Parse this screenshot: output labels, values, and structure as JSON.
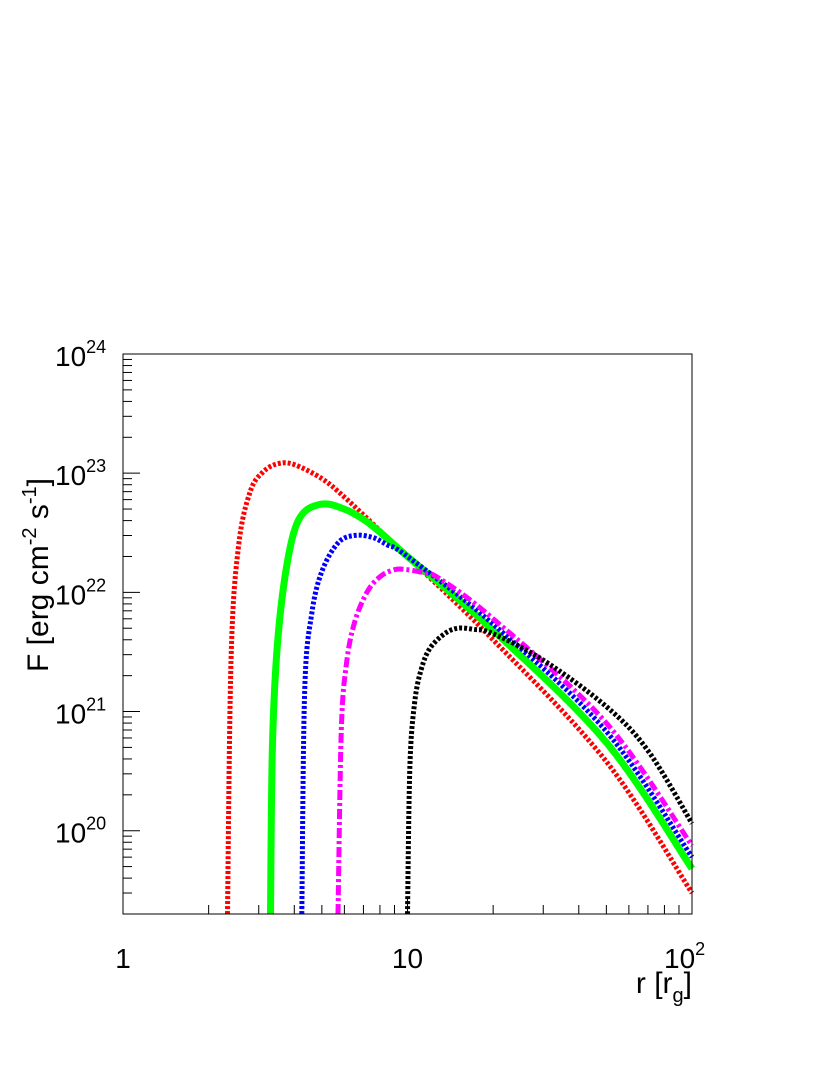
{
  "chart_data": {
    "type": "line",
    "title": "",
    "xlabel": {
      "text": "r [r",
      "sub": "g",
      "close": "]"
    },
    "ylabel": {
      "parts": [
        {
          "t": "F [erg cm",
          "s": ""
        },
        {
          "t": "",
          "s": "-2"
        },
        {
          "t": " s",
          "s": ""
        },
        {
          "t": "",
          "s": "-1"
        },
        {
          "t": "]",
          "s": ""
        }
      ]
    },
    "x_scale": "log",
    "y_scale": "log",
    "xlim": [
      1,
      100
    ],
    "ylim": [
      2e+19,
      1e+24
    ],
    "x_ticks": [
      {
        "value": 1,
        "base": "1",
        "exp": ""
      },
      {
        "value": 10,
        "base": "10",
        "exp": ""
      },
      {
        "value": 100,
        "base": "10",
        "exp": "2"
      }
    ],
    "y_ticks": [
      {
        "value": 1e+20,
        "base": "10",
        "exp": "20"
      },
      {
        "value": 1e+21,
        "base": "10",
        "exp": "21"
      },
      {
        "value": 1e+22,
        "base": "10",
        "exp": "22"
      },
      {
        "value": 1e+23,
        "base": "10",
        "exp": "23"
      },
      {
        "value": 1e+24,
        "base": "10",
        "exp": "24"
      }
    ],
    "grid": false,
    "legend": "none",
    "series": [
      {
        "color": "#ff0000",
        "style": "dotted",
        "x": [
          2.33,
          2.4,
          2.55,
          2.8,
          3.1,
          3.5,
          4.0,
          5.0,
          6.0,
          8.0,
          10.0,
          20.0,
          50.0,
          100.0
        ],
        "y": [
          2e+19,
          3e+21,
          2.5e+22,
          7e+22,
          1.02e+23,
          1.2e+23,
          1.18e+23,
          9e+22,
          6.3e+22,
          3.3e+22,
          2e+22,
          4e+21,
          3.8e+20,
          3e+19
        ]
      },
      {
        "color": "#00ff00",
        "style": "solid",
        "x": [
          3.3,
          3.35,
          3.5,
          3.8,
          4.2,
          5.0,
          6.0,
          7.0,
          8.0,
          10.0,
          20.0,
          50.0,
          100.0
        ],
        "y": [
          2e+19,
          5e+20,
          4e+21,
          1.9e+22,
          4.3e+22,
          5.5e+22,
          5e+22,
          4.1e+22,
          3.2e+22,
          2e+22,
          4.8e+21,
          5.5e+20,
          4.8e+19
        ]
      },
      {
        "color": "#0000ff",
        "style": "dotted",
        "x": [
          4.25,
          4.35,
          4.6,
          5.0,
          5.7,
          6.5,
          7.5,
          8.5,
          10.0,
          20.0,
          50.0,
          100.0
        ],
        "y": [
          2e+19,
          1.5e+21,
          6.5e+21,
          1.5e+22,
          2.6e+22,
          3e+22,
          2.9e+22,
          2.5e+22,
          2e+22,
          5.4e+21,
          6.8e+20,
          6e+19
        ]
      },
      {
        "color": "#ff00ff",
        "style": "dashdot",
        "x": [
          5.7,
          5.85,
          6.1,
          6.5,
          7.2,
          8.0,
          9.0,
          10.0,
          11.5,
          13.0,
          20.0,
          50.0,
          100.0
        ],
        "y": [
          2e+19,
          7e+20,
          2.5e+21,
          5.5e+21,
          1e+22,
          1.35e+22,
          1.55e+22,
          1.55e+22,
          1.45e+22,
          1.3e+22,
          6e+21,
          8e+20,
          7.5e+19
        ]
      },
      {
        "color": "#000000",
        "style": "dotted",
        "x": [
          10.0,
          10.2,
          10.6,
          11.2,
          12.0,
          13.5,
          15.0,
          17.0,
          20.0,
          30.0,
          50.0,
          70.0,
          100.0
        ],
        "y": [
          2e+19,
          3.5e+20,
          1.2e+21,
          2.3e+21,
          3.4e+21,
          4.5e+21,
          5e+21,
          4.9e+21,
          4.5e+21,
          2.7e+21,
          1.1e+21,
          4.7e+20,
          1.15e+20
        ]
      }
    ]
  }
}
